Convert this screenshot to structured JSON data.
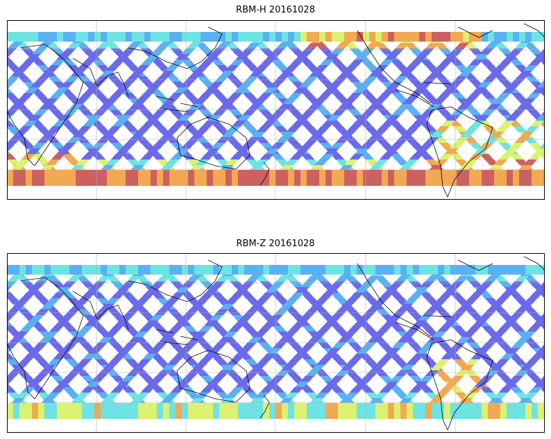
{
  "figure": {
    "panels": [
      {
        "title": "RBM-H 20161028",
        "variable": "RBM-H",
        "date": "20161028",
        "colormap": "jet",
        "high_value_regions": [
          "southern-high-latitudes",
          "north-pacific-high-latitudes",
          "south-america-east"
        ]
      },
      {
        "title": "RBM-Z 20161028",
        "variable": "RBM-Z",
        "date": "20161028",
        "colormap": "jet",
        "high_value_regions": [
          "south-america-east",
          "southern-high-latitudes"
        ]
      }
    ],
    "colors": {
      "low": "#5a5ae8",
      "mid_low": "#4aa8f0",
      "mid": "#5ee0e0",
      "mid_high": "#d8f060",
      "high": "#f0a040",
      "very_high": "#c85050",
      "coastline": "#000000",
      "gridline": "#b0b0b0"
    }
  }
}
